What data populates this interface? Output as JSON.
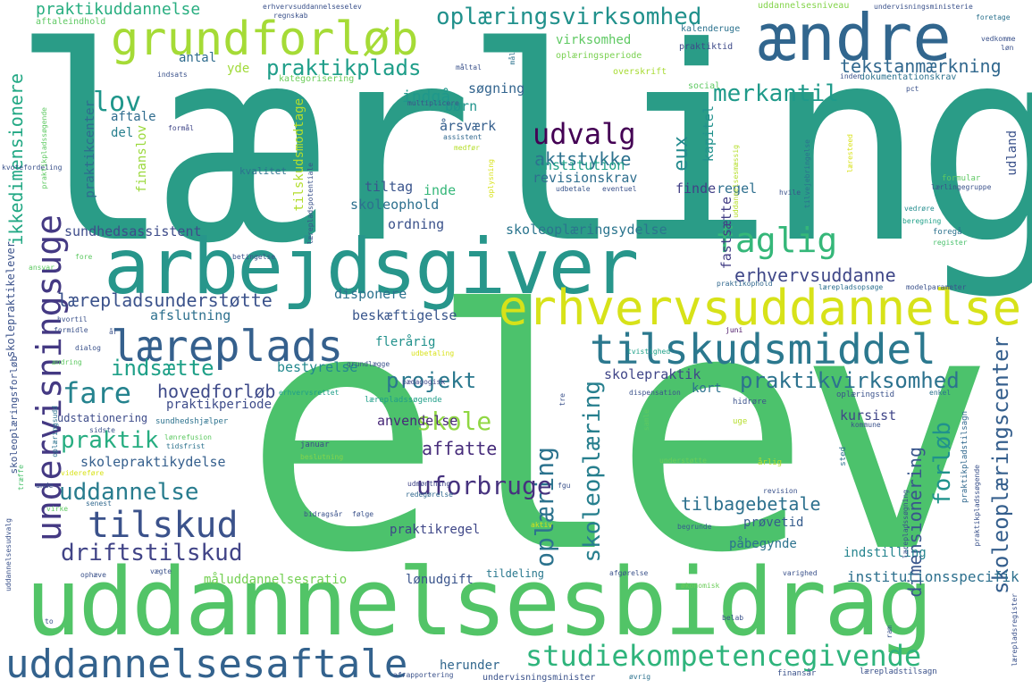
{
  "words": [
    {
      "text": "lærling",
      "color": "#2a9c87"
    },
    {
      "text": "elev",
      "color": "#4cc26c"
    },
    {
      "text": "uddannelsesbidrag",
      "color": "#52c467"
    },
    {
      "text": "arbejdsgiver",
      "color": "#27968b"
    },
    {
      "text": "ændre",
      "color": "#31668e"
    },
    {
      "text": "erhvervsuddannelse",
      "color": "#d7e219"
    },
    {
      "text": "grundforløb",
      "color": "#a5db36"
    },
    {
      "text": "tilskudsmiddel",
      "color": "#2b788e"
    },
    {
      "text": "uddannelsesaftale",
      "color": "#33628d"
    },
    {
      "text": "undervisningsuge",
      "color": "#443983"
    },
    {
      "text": "læreplads",
      "color": "#35608d"
    },
    {
      "text": "studiekompetencegivende",
      "color": "#2fb47c"
    },
    {
      "text": "tilskud",
      "color": "#3b528b"
    },
    {
      "text": "oplæringsvirksomhed",
      "color": "#21918c"
    },
    {
      "text": "faglig",
      "color": "#35b779"
    },
    {
      "text": "praktikvirksomhed",
      "color": "#2c728e"
    },
    {
      "text": "skoleoplæringscenter",
      "color": "#355f8d"
    },
    {
      "text": "oplæring",
      "color": "#2c738e"
    },
    {
      "text": "skoleoplæring",
      "color": "#277f8e"
    },
    {
      "text": "driftstilskud",
      "color": "#414487"
    },
    {
      "text": "praktikplads",
      "color": "#1f9e89"
    },
    {
      "text": "uddannelse",
      "color": "#287c8e"
    },
    {
      "text": "fare",
      "color": "#25838e"
    },
    {
      "text": "praktik",
      "color": "#27ad81"
    },
    {
      "text": "skole",
      "color": "#90d743"
    },
    {
      "text": "udvalg",
      "color": "#440154"
    },
    {
      "text": "projekt",
      "color": "#2a788e"
    },
    {
      "text": "uforbruge",
      "color": "#46327e"
    },
    {
      "text": "forløb",
      "color": "#20928c"
    },
    {
      "text": "lov",
      "color": "#1f968b"
    },
    {
      "text": "merkantil",
      "color": "#1f9a8a"
    },
    {
      "text": "indsætte",
      "color": "#1fa088"
    },
    {
      "text": "ikkedimensionere",
      "color": "#22a884"
    },
    {
      "text": "tekstanmærkning",
      "color": "#31688e"
    },
    {
      "text": "praktikuddannelse",
      "color": "#28ae80"
    },
    {
      "text": "dimensionering",
      "color": "#39568c"
    },
    {
      "text": "eux",
      "color": "#238a8d"
    },
    {
      "text": "tilbagebetale",
      "color": "#2d718e"
    },
    {
      "text": "lærepladsunderstøtte",
      "color": "#3b528b"
    },
    {
      "text": "aktstykke",
      "color": "#2c728e"
    },
    {
      "text": "hovedforløb",
      "color": "#3e4a89"
    },
    {
      "text": "erhvervsuddanne",
      "color": "#3f4788"
    },
    {
      "text": "affatte",
      "color": "#472d7b"
    },
    {
      "text": "institutionsspecifik",
      "color": "#2d708e"
    },
    {
      "text": "herunder",
      "color": "#31678e"
    },
    {
      "text": "skoleoplæringsydelse",
      "color": "#2b758e"
    },
    {
      "text": "sundhedsassistent",
      "color": "#3e4c8a"
    },
    {
      "text": "anvendelse",
      "color": "#482878"
    },
    {
      "text": "kursist",
      "color": "#404688"
    },
    {
      "text": "bestyrelse",
      "color": "#23898e"
    },
    {
      "text": "skolepraktikydelse",
      "color": "#355f8d"
    },
    {
      "text": "afslutning",
      "color": "#2d708e"
    },
    {
      "text": "disponere",
      "color": "#2c728e"
    },
    {
      "text": "beskæftigelse",
      "color": "#39568c"
    },
    {
      "text": "skolepraktik",
      "color": "#404688"
    },
    {
      "text": "institution",
      "color": "#1fa188"
    },
    {
      "text": "revisionskrav",
      "color": "#2e6e8e"
    },
    {
      "text": "tiltag",
      "color": "#3a548c"
    },
    {
      "text": "inde",
      "color": "#35b779"
    },
    {
      "text": "skoleophold",
      "color": "#2d708e"
    },
    {
      "text": "ordning",
      "color": "#3b528b"
    },
    {
      "text": "indgå",
      "color": "#1f988b"
    },
    {
      "text": "søgning",
      "color": "#32648e"
    },
    {
      "text": "årsværk",
      "color": "#355f8d"
    },
    {
      "text": "børn",
      "color": "#1f948c"
    },
    {
      "text": "kapitel",
      "color": "#21918c"
    },
    {
      "text": "finde",
      "color": "#424086"
    },
    {
      "text": "fastsætte",
      "color": "#433e85"
    },
    {
      "text": "regel",
      "color": "#2e6f8e"
    },
    {
      "text": "udland",
      "color": "#3b528b"
    },
    {
      "text": "praktikcenter",
      "color": "#2f6b8e"
    },
    {
      "text": "aftale",
      "color": "#2f6c8e"
    },
    {
      "text": "del",
      "color": "#277f8e"
    },
    {
      "text": "antal",
      "color": "#2f6c8e"
    },
    {
      "text": "yde",
      "color": "#a0da39"
    },
    {
      "text": "tilskudsmodtage",
      "color": "#b2dd2d"
    },
    {
      "text": "finanslov",
      "color": "#9bd93c"
    },
    {
      "text": "praktikperiode",
      "color": "#3e4c8a"
    },
    {
      "text": "udstationering",
      "color": "#3e4c8a"
    },
    {
      "text": "flerårig",
      "color": "#21918c"
    },
    {
      "text": "praktikregel",
      "color": "#3f4788"
    },
    {
      "text": "prøvetid",
      "color": "#365c8d"
    },
    {
      "text": "påbegynde",
      "color": "#2c728e"
    },
    {
      "text": "indstilling",
      "color": "#25848e"
    },
    {
      "text": "måluddannelsesratio",
      "color": "#75d054"
    },
    {
      "text": "lønudgift",
      "color": "#3a548c"
    },
    {
      "text": "tildeling",
      "color": "#2a788e"
    },
    {
      "text": "kort",
      "color": "#2c728e"
    },
    {
      "text": "virksomhed",
      "color": "#5ec962"
    },
    {
      "text": "kvalitet",
      "color": "#2c728e"
    },
    {
      "text": "uddannelsesniveau",
      "color": "#84d44b"
    },
    {
      "text": "praktiktid",
      "color": "#3e4a89"
    },
    {
      "text": "oplæringsperiode",
      "color": "#7ad151"
    },
    {
      "text": "overskrift",
      "color": "#a8db34"
    },
    {
      "text": "kategorisering",
      "color": "#6ccd5a"
    },
    {
      "text": "multiplicere",
      "color": "#3b528b"
    },
    {
      "text": "social",
      "color": "#5ec962"
    },
    {
      "text": "dokumentationskrav",
      "color": "#2c728e"
    },
    {
      "text": "kalenderuge",
      "color": "#2c728e"
    },
    {
      "text": "formål",
      "color": "#404688"
    },
    {
      "text": "assistent",
      "color": "#31688e"
    },
    {
      "text": "udbetale",
      "color": "#39568c"
    },
    {
      "text": "eventuel",
      "color": "#3b528b"
    },
    {
      "text": "vedrøre",
      "color": "#228c8d"
    },
    {
      "text": "beregning",
      "color": "#1fa088"
    },
    {
      "text": "formular",
      "color": "#5ec962"
    },
    {
      "text": "lærlingegruppe",
      "color": "#3b528b"
    },
    {
      "text": "foregå",
      "color": "#2c728e"
    },
    {
      "text": "register",
      "color": "#4ac16d"
    },
    {
      "text": "praktikophold",
      "color": "#31688e"
    },
    {
      "text": "lærepladsopsøge",
      "color": "#2d708e"
    },
    {
      "text": "modelparameter",
      "color": "#3b528b"
    },
    {
      "text": "juni",
      "color": "#471164"
    },
    {
      "text": "tvistighed",
      "color": "#1fa188"
    },
    {
      "text": "oplæringstid",
      "color": "#3b528b"
    },
    {
      "text": "enkel",
      "color": "#2c728e"
    },
    {
      "text": "hidrøre",
      "color": "#3b528b"
    },
    {
      "text": "uge",
      "color": "#b5de2b"
    },
    {
      "text": "sted",
      "color": "#2c728e"
    },
    {
      "text": "årlig",
      "color": "#b5de2b"
    },
    {
      "text": "kommune",
      "color": "#3b528b"
    },
    {
      "text": "dispensation",
      "color": "#3b528b"
    },
    {
      "text": "understøtte",
      "color": "#6ccd5a"
    },
    {
      "text": "revision",
      "color": "#3b528b"
    },
    {
      "text": "begrunde",
      "color": "#355f8d"
    },
    {
      "text": "aktiv",
      "color": "#d8e219"
    },
    {
      "text": "fgu",
      "color": "#3b528b"
    },
    {
      "text": "lærepladssøgende",
      "color": "#1f9e89"
    },
    {
      "text": "pædagogisk",
      "color": "#404688"
    },
    {
      "text": "erhvervsrettet",
      "color": "#1f9e89"
    },
    {
      "text": "grundlægge",
      "color": "#3b528b"
    },
    {
      "text": "udbetaling",
      "color": "#d8e219"
    },
    {
      "text": "sundhedshjælper",
      "color": "#2c728e"
    },
    {
      "text": "januar",
      "color": "#3e4c8a"
    },
    {
      "text": "beslutning",
      "color": "#84d44b"
    },
    {
      "text": "udmøntning",
      "color": "#404688"
    },
    {
      "text": "redegørelse",
      "color": "#31688e"
    },
    {
      "text": "følge",
      "color": "#3b528b"
    },
    {
      "text": "bidragsår",
      "color": "#3b528b"
    },
    {
      "text": "lønrefusion",
      "color": "#5ec962"
    },
    {
      "text": "tidsfrist",
      "color": "#2c728e"
    },
    {
      "text": "sidste",
      "color": "#3b528b"
    },
    {
      "text": "oplæringsudd",
      "color": "#2c728e"
    },
    {
      "text": "videreføre",
      "color": "#d8e219"
    },
    {
      "text": "senest",
      "color": "#31688e"
    },
    {
      "text": "virke",
      "color": "#5ec962"
    },
    {
      "text": "unde",
      "color": "#3b528b"
    },
    {
      "text": "træffe",
      "color": "#4ac16d"
    },
    {
      "text": "ophæve",
      "color": "#3b528b"
    },
    {
      "text": "vægte",
      "color": "#3b528b"
    },
    {
      "text": "afgørelse",
      "color": "#3b528b"
    },
    {
      "text": "økonomisk",
      "color": "#6ccd5a"
    },
    {
      "text": "varighed",
      "color": "#3b528b"
    },
    {
      "text": "belab",
      "color": "#3b528b"
    },
    {
      "text": "ram",
      "color": "#3b528b"
    },
    {
      "text": "afrapportering",
      "color": "#3b528b"
    },
    {
      "text": "undervisningsminister",
      "color": "#3b528b"
    },
    {
      "text": "øvrig",
      "color": "#2c728e"
    },
    {
      "text": "finansår",
      "color": "#3b528b"
    },
    {
      "text": "lærepladstilsagn",
      "color": "#3b528b"
    },
    {
      "text": "lærepladsregister",
      "color": "#3b528b"
    },
    {
      "text": "praktikpladstilsagn",
      "color": "#31688e"
    },
    {
      "text": "lærepladssøgning",
      "color": "#3b528b"
    },
    {
      "text": "praktikpladssøgende",
      "color": "#3b528b"
    },
    {
      "text": "erhvervsuddannelseselev",
      "color": "#3b528b"
    },
    {
      "text": "regnskab",
      "color": "#3b528b"
    },
    {
      "text": "aftaleindhold",
      "color": "#5ec962"
    },
    {
      "text": "undervisningsministerie",
      "color": "#3b528b"
    },
    {
      "text": "foretage",
      "color": "#2c728e"
    },
    {
      "text": "vedkomme",
      "color": "#3b528b"
    },
    {
      "text": "løn",
      "color": "#3b528b"
    },
    {
      "text": "mål",
      "color": "#2c728e"
    },
    {
      "text": "måltal",
      "color": "#3b528b"
    },
    {
      "text": "indsats",
      "color": "#3b528b"
    },
    {
      "text": "inden",
      "color": "#3b528b"
    },
    {
      "text": "pct",
      "color": "#3b528b"
    },
    {
      "text": "hvile",
      "color": "#3b528b"
    },
    {
      "text": "tilvejebringelse",
      "color": "#2c728e"
    },
    {
      "text": "læresteed",
      "color": "#d8e219"
    },
    {
      "text": "uddannelsesmæssig",
      "color": "#b5de2b"
    },
    {
      "text": "medfør",
      "color": "#b5de2b"
    },
    {
      "text": "oplysning",
      "color": "#d8e219"
    },
    {
      "text": "lærepladspotentiale",
      "color": "#3b528b"
    },
    {
      "text": "betingelse",
      "color": "#3b528b"
    },
    {
      "text": "fore",
      "color": "#5ec962"
    },
    {
      "text": "ansvar",
      "color": "#5ec962"
    },
    {
      "text": "hvortil",
      "color": "#3b528b"
    },
    {
      "text": "formidle",
      "color": "#3b528b"
    },
    {
      "text": "dialog",
      "color": "#3b528b"
    },
    {
      "text": "ændring",
      "color": "#5ec962"
    },
    {
      "text": "år",
      "color": "#3b528b"
    },
    {
      "text": "skolepraktikelever",
      "color": "#3b528b"
    },
    {
      "text": "skoleoplæringsforløb",
      "color": "#3b528b"
    },
    {
      "text": "uddannelsesudvalg",
      "color": "#3b528b"
    },
    {
      "text": "to",
      "color": "#3b528b"
    },
    {
      "text": "kvotefordeling",
      "color": "#3b528b"
    },
    {
      "text": "praktikpladssøgende",
      "color": "#5ec962"
    },
    {
      "text": "tre",
      "color": "#3b528b"
    },
    {
      "text": "samle",
      "color": "#5ec962"
    }
  ]
}
